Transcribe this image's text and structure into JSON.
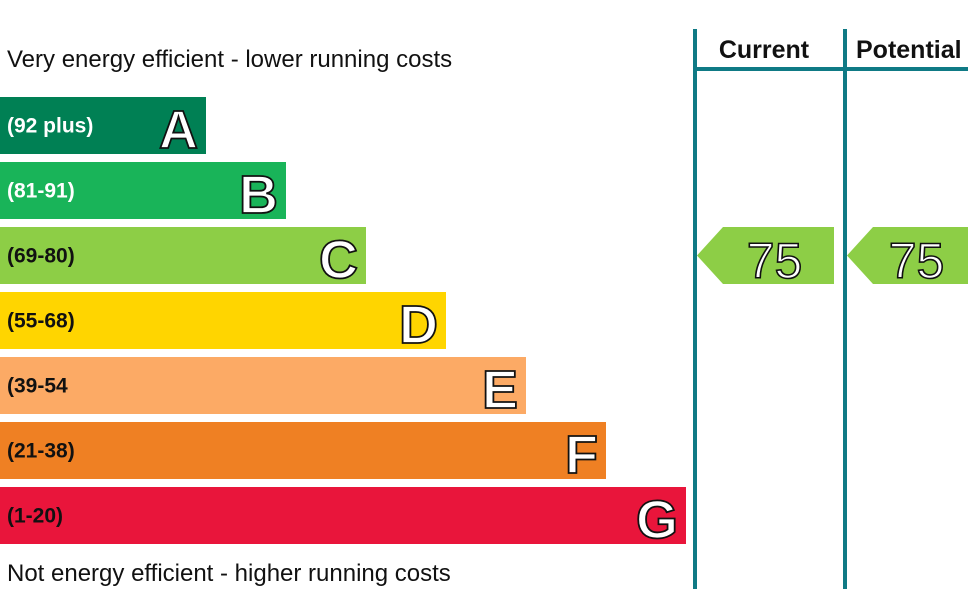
{
  "captions": {
    "top": "Very energy efficient - lower running costs",
    "bottom": "Not energy efficient - higher running costs"
  },
  "columns": {
    "current": "Current",
    "potential": "Potential"
  },
  "chart_data": {
    "type": "bar",
    "title": "",
    "bands": [
      {
        "letter": "A",
        "range": "(92 plus)",
        "color": "#008054",
        "label_color": "#ffffff"
      },
      {
        "letter": "B",
        "range": "(81-91)",
        "color": "#19b459",
        "label_color": "#ffffff"
      },
      {
        "letter": "C",
        "range": "(69-80)",
        "color": "#8dce46",
        "label_color": "#111111"
      },
      {
        "letter": "D",
        "range": "(55-68)",
        "color": "#ffd500",
        "label_color": "#111111"
      },
      {
        "letter": "E",
        "range": "(39-54",
        "color": "#fcaa65",
        "label_color": "#111111"
      },
      {
        "letter": "F",
        "range": "(21-38)",
        "color": "#ef8023",
        "label_color": "#111111"
      },
      {
        "letter": "G",
        "range": "(1-20)",
        "color": "#e9153b",
        "label_color": "#111111"
      }
    ],
    "current": {
      "value": 75,
      "band": "C",
      "color": "#8dce46"
    },
    "potential": {
      "value": 75,
      "band": "C",
      "color": "#8dce46"
    },
    "divider_color": "#0f7a85"
  }
}
